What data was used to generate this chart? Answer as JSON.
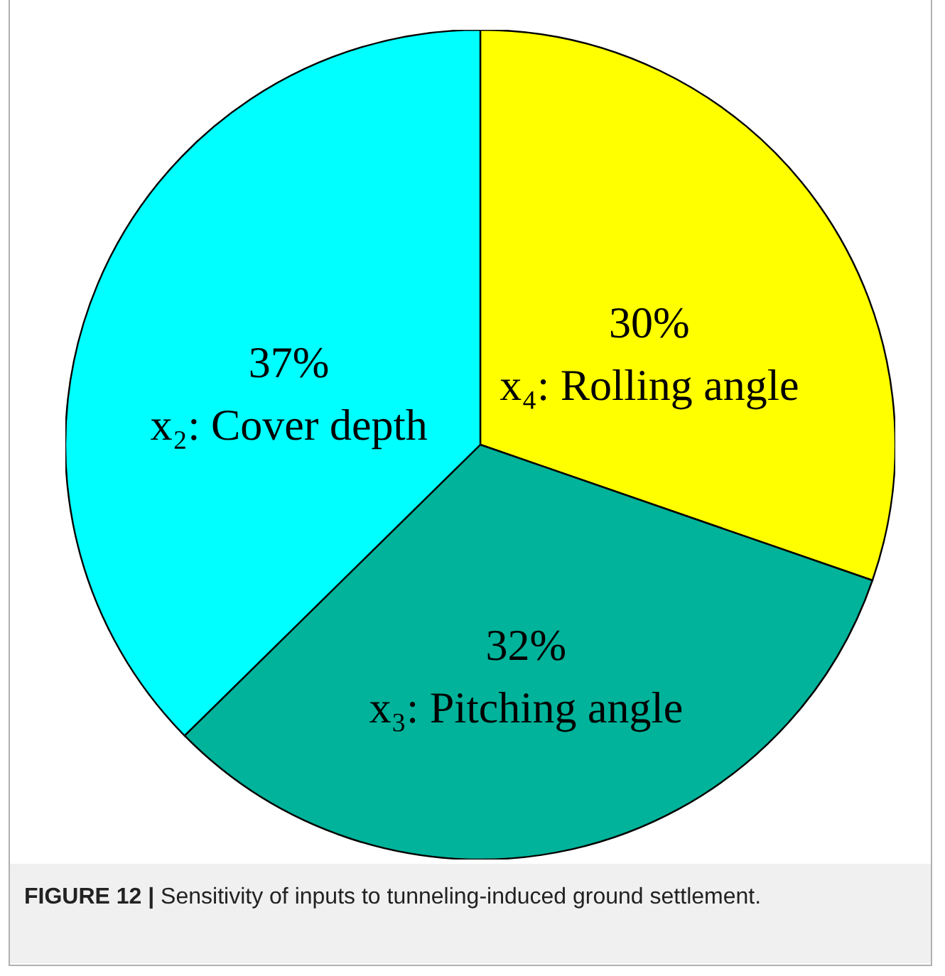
{
  "chart_data": {
    "type": "pie",
    "categories": [
      "x₄: Rolling angle",
      "x₃: Pitching angle",
      "x₂: Cover depth"
    ],
    "values": [
      30,
      32,
      37
    ],
    "value_labels": [
      "30%",
      "32%",
      "37%"
    ],
    "colors": [
      "#ffff00",
      "#00b39a",
      "#00ffff"
    ],
    "annotations": [
      "FIGURE 12 | Sensitivity of inputs to tunneling-induced ground settlement."
    ]
  }
}
